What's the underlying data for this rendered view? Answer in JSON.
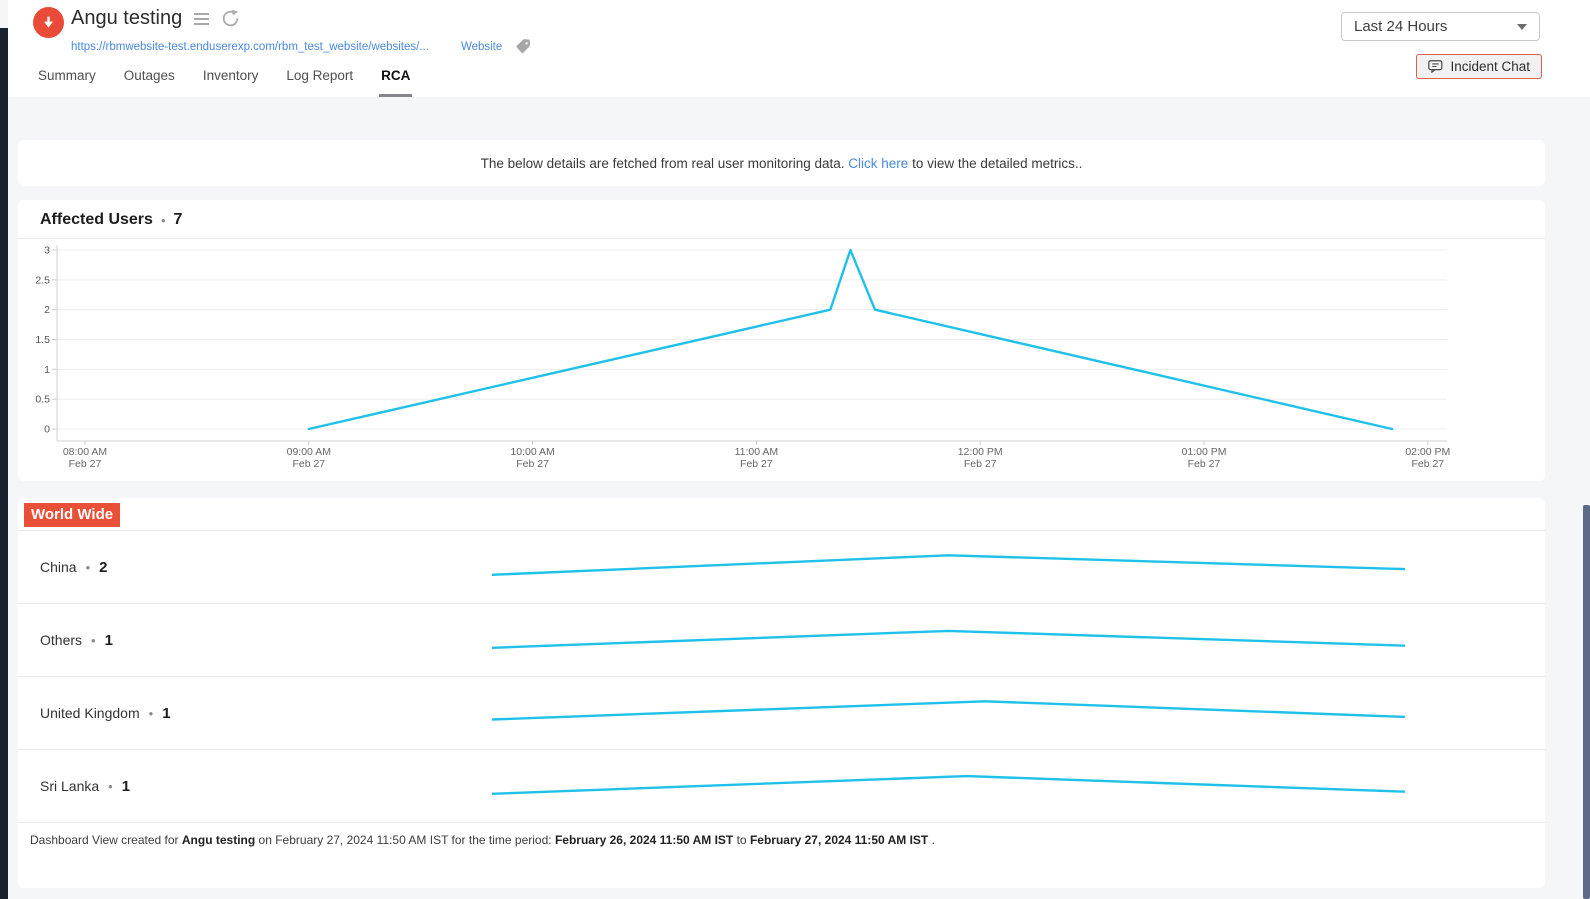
{
  "ui": {
    "bullet": "•"
  },
  "header": {
    "title": "Angu testing",
    "url": "https://rbmwebsite-test.enduserexp.com/rbm_test_website/websites/...",
    "type_label": "Website",
    "tabs": [
      {
        "label": "Summary"
      },
      {
        "label": "Outages"
      },
      {
        "label": "Inventory"
      },
      {
        "label": "Log Report"
      },
      {
        "label": "RCA",
        "active": true
      }
    ],
    "time_range_selected": "Last 24 Hours",
    "incident_chat_label": "Incident Chat"
  },
  "info_bar": {
    "text_before": "The below details are fetched from real user monitoring data. ",
    "link_text": "Click here",
    "text_after": " to view the detailed metrics.."
  },
  "affected_users": {
    "title": "Affected Users",
    "count": "7"
  },
  "world_wide": {
    "title": "World Wide",
    "rows": [
      {
        "label": "China",
        "count": "2"
      },
      {
        "label": "Others",
        "count": "1"
      },
      {
        "label": "United Kingdom",
        "count": "1"
      },
      {
        "label": "Sri Lanka",
        "count": "1"
      }
    ]
  },
  "footer": {
    "prefix": "Dashboard View created for ",
    "monitor_name": "Angu testing",
    "middle": " on February 27, 2024 11:50 AM IST for the time period: ",
    "period_start": "February 26, 2024 11:50 AM IST",
    "to_label": " to ",
    "period_end": "February 27, 2024 11:50 AM IST",
    "suffix": " ."
  },
  "colors": {
    "status_down_red": "#ea4b39",
    "world_wide_badge": "#e85137",
    "chart_line_cyan": "#1fc1e8",
    "link_blue": "#4a89dc",
    "incident_chat_border": "#df604e",
    "scrollbar_thumb": "#5d6b86"
  },
  "chart_data": [
    {
      "type": "line",
      "title": "Affected Users",
      "total_affected_users": 7,
      "x_axis": {
        "ticks": [
          "08:00 AM",
          "09:00 AM",
          "10:00 AM",
          "11:00 AM",
          "12:00 PM",
          "01:00 PM",
          "02:00 PM"
        ],
        "tick_sublabel": "Feb 27",
        "start_hour": 8,
        "end_hour": 14
      },
      "y_axis": {
        "ticks": [
          0,
          0.5,
          1,
          1.5,
          2,
          2.5,
          3
        ],
        "min": 0,
        "max": 3
      },
      "points": [
        {
          "hour": 9.0,
          "time": "09:00 AM",
          "value": 0
        },
        {
          "hour": 11.33,
          "time": "11:20 AM",
          "value": 2
        },
        {
          "hour": 11.42,
          "time": "11:25 AM",
          "value": 3
        },
        {
          "hour": 11.53,
          "time": "11:32 AM",
          "value": 2
        },
        {
          "hour": 13.84,
          "time": "01:50 PM",
          "value": 0
        }
      ],
      "line_color": "#1fc1e8",
      "grid": true,
      "legend": "none"
    },
    {
      "type": "line",
      "title": "World Wide affected users by region (sparklines)",
      "series": [
        {
          "name": "China",
          "count": 2,
          "shape": [
            [
              0,
              0.2
            ],
            [
              0.5,
              0.95
            ],
            [
              1,
              0.42
            ]
          ]
        },
        {
          "name": "Others",
          "count": 1,
          "shape": [
            [
              0,
              0.2
            ],
            [
              0.5,
              0.85
            ],
            [
              1,
              0.28
            ]
          ]
        },
        {
          "name": "United Kingdom",
          "count": 1,
          "shape": [
            [
              0,
              0.25
            ],
            [
              0.54,
              0.95
            ],
            [
              1,
              0.35
            ]
          ]
        },
        {
          "name": "Sri Lanka",
          "count": 1,
          "shape": [
            [
              0,
              0.2
            ],
            [
              0.52,
              0.88
            ],
            [
              1,
              0.28
            ]
          ]
        }
      ],
      "line_color": "#1fc1e8"
    }
  ]
}
